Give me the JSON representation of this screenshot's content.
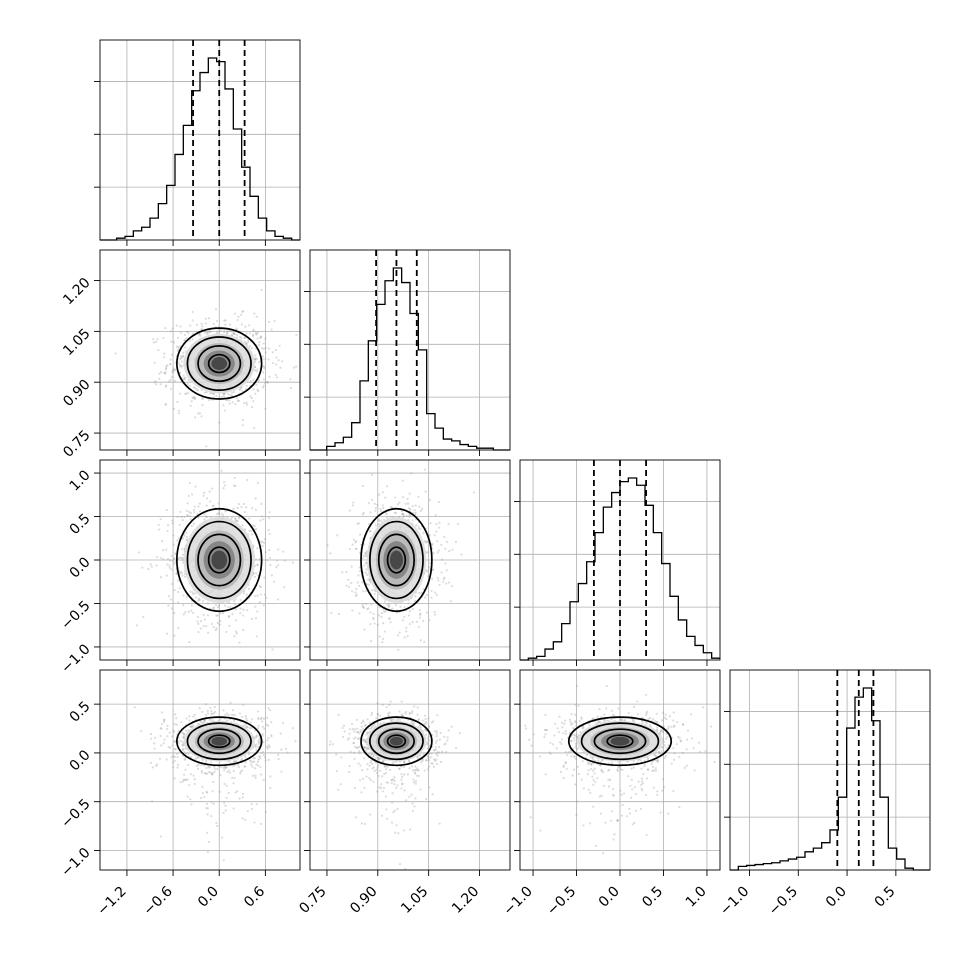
{
  "chart_data": {
    "type": "corner",
    "title": "",
    "n_params": 4,
    "params": [
      {
        "label": "",
        "range": [
          -1.55,
          1.05
        ],
        "ticks": [
          -1.2,
          -0.6,
          0.0,
          0.6
        ],
        "tick_labels": [
          "−1.2",
          "−0.6",
          "0.0",
          "0.6"
        ],
        "quantiles": [
          -0.34,
          0.0,
          0.33
        ],
        "hist_relative": [
          0.0,
          0.0,
          0.01,
          0.02,
          0.05,
          0.07,
          0.12,
          0.2,
          0.3,
          0.47,
          0.63,
          0.82,
          0.92,
          1.0,
          0.98,
          0.83,
          0.61,
          0.4,
          0.24,
          0.12,
          0.05,
          0.02,
          0.01,
          0.0
        ]
      },
      {
        "label": "",
        "range": [
          0.7,
          1.29
        ],
        "ticks": [
          0.75,
          0.9,
          1.05,
          1.2
        ],
        "tick_labels": [
          "0.75",
          "0.90",
          "1.05",
          "1.20"
        ],
        "quantiles": [
          0.895,
          0.955,
          1.015
        ],
        "hist_relative": [
          0.0,
          0.0,
          0.02,
          0.04,
          0.07,
          0.15,
          0.38,
          0.6,
          0.8,
          0.93,
          1.0,
          0.92,
          0.75,
          0.55,
          0.2,
          0.12,
          0.06,
          0.05,
          0.03,
          0.02,
          0.01,
          0.01,
          0.0,
          0.0
        ]
      },
      {
        "label": "",
        "range": [
          -1.15,
          1.15
        ],
        "ticks": [
          -1.0,
          -0.5,
          0.0,
          0.5,
          1.0
        ],
        "tick_labels": [
          "−1.0",
          "−0.5",
          "0.0",
          "0.5",
          "1.0"
        ],
        "quantiles": [
          -0.3,
          0.0,
          0.3
        ],
        "hist_relative": [
          0.0,
          0.01,
          0.02,
          0.06,
          0.1,
          0.2,
          0.32,
          0.42,
          0.54,
          0.7,
          0.84,
          0.92,
          0.98,
          1.0,
          0.96,
          0.85,
          0.7,
          0.53,
          0.35,
          0.22,
          0.13,
          0.08,
          0.04,
          0.01
        ]
      },
      {
        "label": "",
        "range": [
          -1.2,
          0.85
        ],
        "ticks": [
          -1.0,
          -0.5,
          0.0,
          0.5
        ],
        "tick_labels": [
          "−1.0",
          "−0.5",
          "0.0",
          "0.5"
        ],
        "quantiles": [
          -0.1,
          0.12,
          0.27
        ],
        "hist_relative": [
          0.0,
          0.02,
          0.025,
          0.03,
          0.035,
          0.04,
          0.05,
          0.06,
          0.07,
          0.1,
          0.12,
          0.15,
          0.22,
          0.4,
          0.78,
          0.95,
          1.0,
          0.82,
          0.4,
          0.12,
          0.06,
          0.01,
          0.0,
          0.0
        ]
      }
    ],
    "centers": [
      0.0,
      0.955,
      0.0,
      0.12
    ],
    "sigmas": [
      0.29,
      0.055,
      0.31,
      0.13
    ],
    "contour_levels": [
      0.5,
      1.0,
      1.5,
      2.0
    ],
    "grid": true,
    "colors": {
      "ink": "#000000",
      "points": "#9a9a9a",
      "grid": "#b0b0b0"
    }
  }
}
